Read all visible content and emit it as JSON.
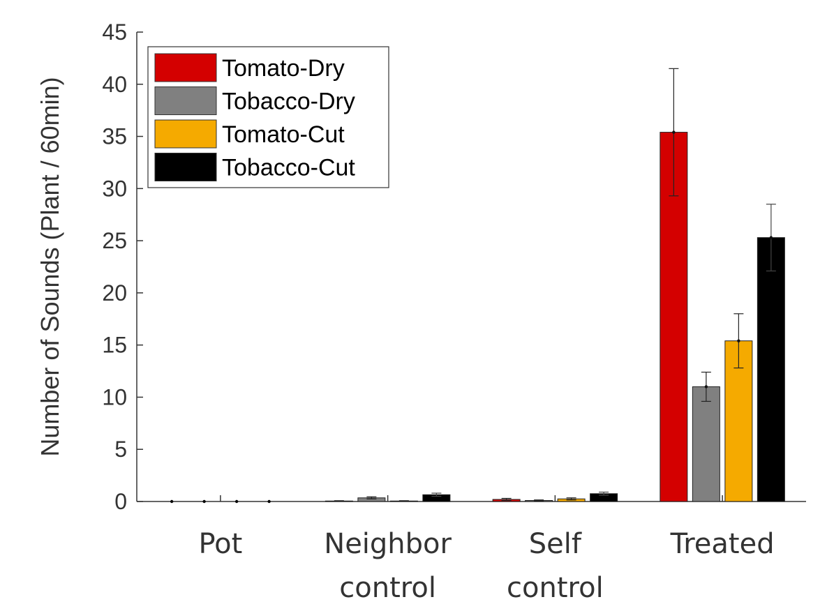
{
  "chart_data": {
    "type": "bar",
    "title": "",
    "xlabel": "",
    "ylabel": "Number of Sounds (Plant / 60min)",
    "ylim": [
      0,
      45
    ],
    "yticks": [
      0,
      5,
      10,
      15,
      20,
      25,
      30,
      35,
      40,
      45
    ],
    "grid": false,
    "legend_position": "top-left",
    "categories": [
      [
        "Pot"
      ],
      [
        "Neighbor",
        "control"
      ],
      [
        "Self",
        "control"
      ],
      [
        "Treated"
      ]
    ],
    "series": [
      {
        "name": "Tomato-Dry",
        "color": "#d40000",
        "values": [
          0,
          0.05,
          0.2,
          35.4
        ],
        "errors": [
          0,
          0.03,
          0.1,
          6.1
        ]
      },
      {
        "name": "Tobacco-Dry",
        "color": "#808080",
        "values": [
          0,
          0.35,
          0.1,
          11.0
        ],
        "errors": [
          0,
          0.1,
          0.05,
          1.4
        ]
      },
      {
        "name": "Tomato-Cut",
        "color": "#f5aa00",
        "values": [
          0,
          0.05,
          0.25,
          15.4
        ],
        "errors": [
          0,
          0.03,
          0.1,
          2.6
        ]
      },
      {
        "name": "Tobacco-Cut",
        "color": "#000000",
        "values": [
          0,
          0.65,
          0.75,
          25.3
        ],
        "errors": [
          0,
          0.15,
          0.15,
          3.2
        ]
      }
    ]
  }
}
